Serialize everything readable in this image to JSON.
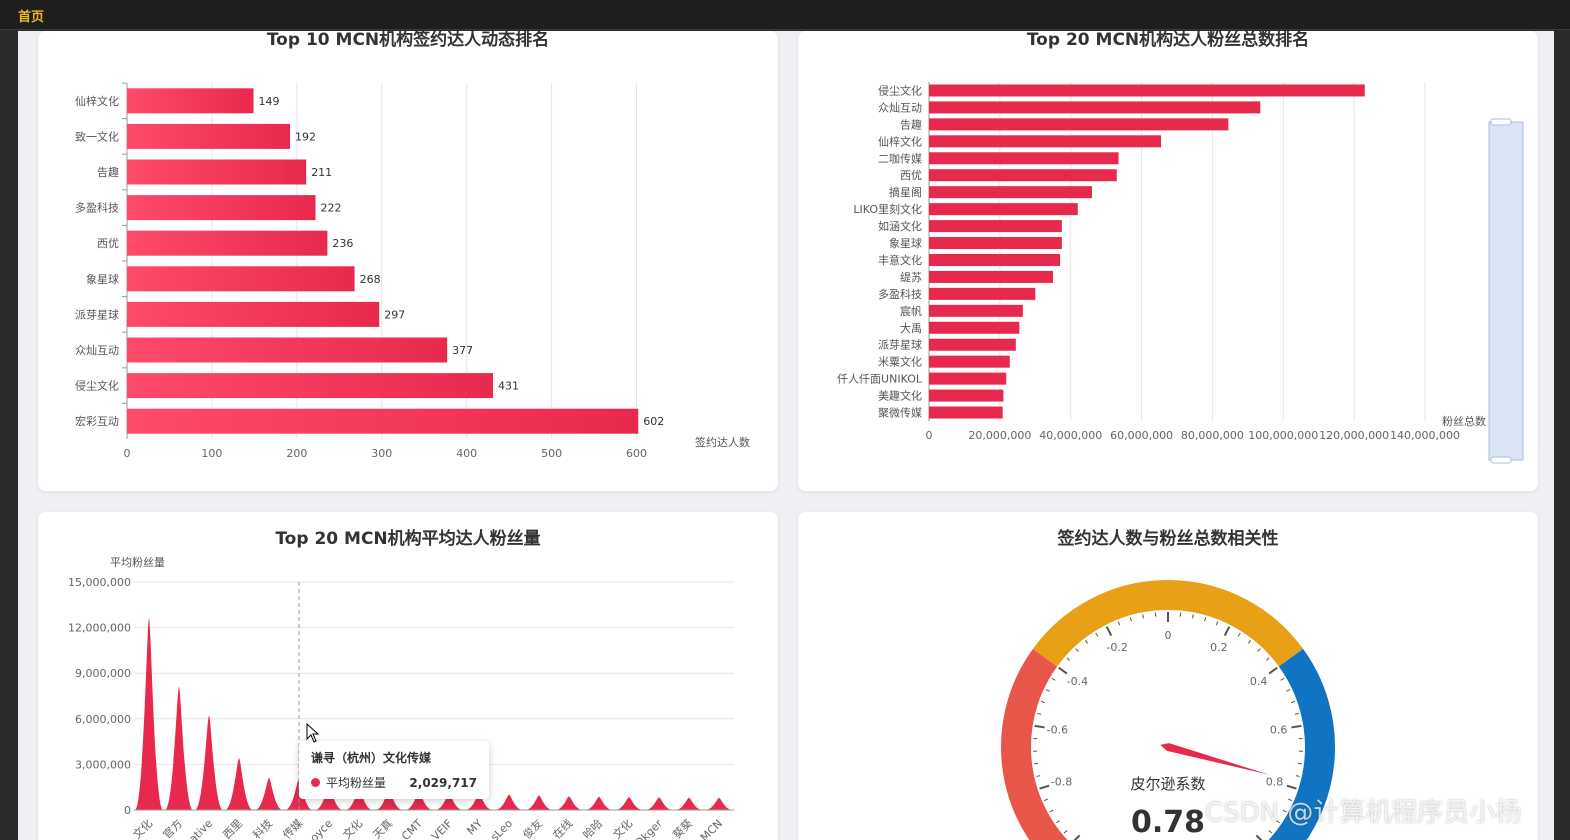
{
  "topbar": {
    "home_label": "首页"
  },
  "colors": {
    "bar": "#e8294e",
    "bar_light": "#ff4a6a",
    "gauge_red": "#e8564a",
    "gauge_orange": "#e8a116",
    "gauge_blue": "#1074c2"
  },
  "tooltip": {
    "title": "谦寻（杭州）文化传媒",
    "series": "平均粉丝量",
    "value": "2,029,717"
  },
  "watermark": "CSDN @计算机程序员小杨",
  "chart_data": [
    {
      "type": "bar",
      "orientation": "horizontal",
      "title": "Top 10 MCN机构签约达人动态排名",
      "xlabel": "签约达人数",
      "categories": [
        "仙梓文化",
        "致一文化",
        "告趣",
        "多盈科技",
        "西优",
        "象星球",
        "派芽星球",
        "众灿互动",
        "侵尘文化",
        "宏彩互动"
      ],
      "values": [
        149,
        192,
        211,
        222,
        236,
        268,
        297,
        377,
        431,
        602
      ],
      "xticks": [
        "0",
        "100",
        "200",
        "300",
        "400",
        "500",
        "600"
      ],
      "xlim": [
        0,
        650
      ]
    },
    {
      "type": "bar",
      "orientation": "horizontal",
      "title": "Top 20 MCN机构达人粉丝总数排名",
      "xlabel": "粉丝总数",
      "categories": [
        "侵尘文化",
        "众灿互动",
        "告趣",
        "仙梓文化",
        "二咖传媒",
        "西优",
        "摘星阁",
        "LIKO里刻文化",
        "如涵文化",
        "象星球",
        "丰意文化",
        "缇苏",
        "多盈科技",
        "宸帆",
        "大禹",
        "派芽星球",
        "米粟文化",
        "仟人仟面UNIKOL",
        "美趣文化",
        "聚微传媒"
      ],
      "values": [
        123000000,
        93500000,
        84500000,
        65500000,
        53500000,
        53000000,
        46000000,
        42000000,
        37500000,
        37500000,
        37000000,
        35000000,
        30000000,
        26500000,
        25500000,
        24500000,
        22800000,
        21800000,
        21000000,
        20800000
      ],
      "xticks": [
        "0",
        "20,000,000",
        "40,000,000",
        "60,000,000",
        "80,000,000",
        "100,000,000",
        "120,000,000",
        "140,000,000"
      ],
      "xlim": [
        0,
        140000000
      ]
    },
    {
      "type": "area",
      "title": "Top 20 MCN机构平均达人粉丝量",
      "ylabel": "平均粉丝量",
      "categories": [
        "文化",
        "官方",
        "ative",
        "西里",
        "科技",
        "传媒",
        "oyce",
        "文化",
        "天真",
        "CMT",
        "VEIF",
        "MY",
        "sLeo",
        "俊友",
        "在线",
        "哈哈",
        "文化",
        "Okger",
        "葵葵",
        "MCN"
      ],
      "values": [
        12600000,
        8100000,
        6200000,
        3400000,
        2100000,
        2029717,
        1600000,
        1400000,
        1300000,
        1200000,
        1100000,
        1050000,
        1000000,
        950000,
        900000,
        870000,
        850000,
        830000,
        810000,
        800000
      ],
      "yticks": [
        "0",
        "3,000,000",
        "6,000,000",
        "9,000,000",
        "12,000,000",
        "15,000,000"
      ],
      "ylim": [
        0,
        15000000
      ]
    },
    {
      "type": "gauge",
      "title": "签约达人数与粉丝总数相关性",
      "series_label": "皮尔逊系数",
      "value": 0.78,
      "value_text": "0.78",
      "ticks": [
        "-0.8",
        "-0.6",
        "-0.4",
        "-0.2",
        "0",
        "0.2",
        "0.4",
        "0.6",
        "0.8"
      ],
      "range": [
        -1,
        1
      ]
    }
  ]
}
